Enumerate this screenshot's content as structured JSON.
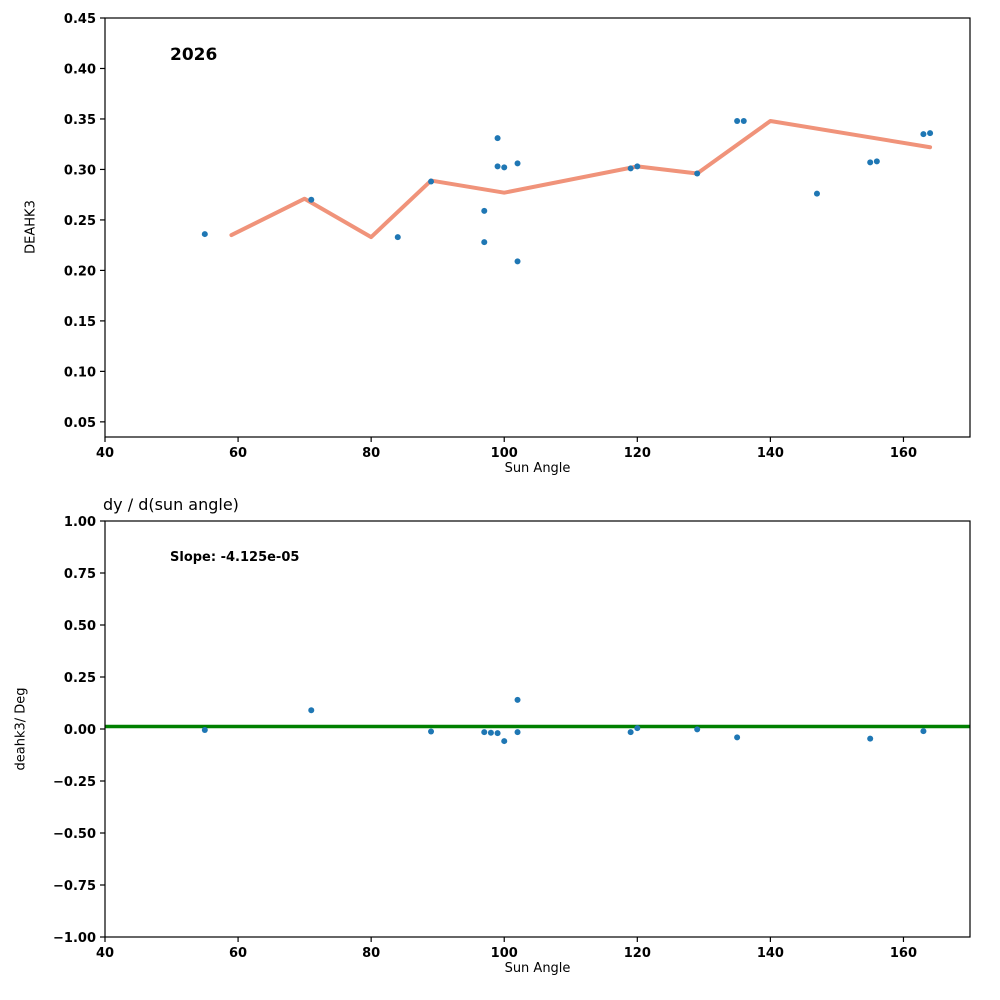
{
  "figure": {
    "background": "#ffffff",
    "scatter_color": "#1f77b4",
    "trend_color": "#f0937a",
    "fit_color": "#008000"
  },
  "chart_data": [
    {
      "type": "scatter",
      "title": "2026",
      "xlabel": "Sun Angle",
      "ylabel": "DEAHK3",
      "xlim": [
        40,
        170
      ],
      "ylim": [
        0.035,
        0.45
      ],
      "xticks": [
        40,
        60,
        80,
        100,
        120,
        140,
        160
      ],
      "yticks": [
        0.05,
        0.1,
        0.15,
        0.2,
        0.25,
        0.3,
        0.35,
        0.4,
        0.45
      ],
      "xtick_decimals": 0,
      "ytick_decimals": 2,
      "grid": false,
      "legend": null,
      "scatter": {
        "color": "#1f77b4",
        "points": [
          [
            55,
            0.236
          ],
          [
            71,
            0.27
          ],
          [
            84,
            0.233
          ],
          [
            89,
            0.288
          ],
          [
            97,
            0.259
          ],
          [
            97,
            0.228
          ],
          [
            99,
            0.331
          ],
          [
            99,
            0.303
          ],
          [
            100,
            0.302
          ],
          [
            102,
            0.306
          ],
          [
            102,
            0.209
          ],
          [
            119,
            0.301
          ],
          [
            120,
            0.303
          ],
          [
            129,
            0.296
          ],
          [
            135,
            0.348
          ],
          [
            136,
            0.348
          ],
          [
            147,
            0.276
          ],
          [
            155,
            0.307
          ],
          [
            156,
            0.308
          ],
          [
            163,
            0.335
          ],
          [
            164,
            0.336
          ]
        ]
      },
      "line": {
        "color": "#f0937a",
        "points": [
          [
            59,
            0.235
          ],
          [
            70,
            0.271
          ],
          [
            80,
            0.233
          ],
          [
            89,
            0.289
          ],
          [
            100,
            0.277
          ],
          [
            120,
            0.303
          ],
          [
            129,
            0.296
          ],
          [
            140,
            0.348
          ],
          [
            164,
            0.322
          ]
        ]
      }
    },
    {
      "type": "scatter",
      "title": "dy / d(sun angle)",
      "annotation": "Slope: -4.125e-05",
      "xlabel": "Sun Angle",
      "ylabel": "deahk3/ Deg",
      "xlim": [
        40,
        170
      ],
      "ylim": [
        -1.0,
        1.0
      ],
      "xticks": [
        40,
        60,
        80,
        100,
        120,
        140,
        160
      ],
      "yticks": [
        -1.0,
        -0.75,
        -0.5,
        -0.25,
        0.0,
        0.25,
        0.5,
        0.75,
        1.0
      ],
      "xtick_decimals": 0,
      "ytick_decimals": 2,
      "grid": false,
      "legend": null,
      "scatter": {
        "color": "#1f77b4",
        "points": [
          [
            55,
            -0.005
          ],
          [
            71,
            0.09
          ],
          [
            89,
            -0.012
          ],
          [
            97,
            -0.015
          ],
          [
            98,
            -0.018
          ],
          [
            99,
            -0.02
          ],
          [
            100,
            -0.058
          ],
          [
            102,
            0.14
          ],
          [
            102,
            -0.015
          ],
          [
            119,
            -0.015
          ],
          [
            120,
            0.004
          ],
          [
            129,
            -0.002
          ],
          [
            135,
            -0.04
          ],
          [
            155,
            -0.046
          ],
          [
            163,
            -0.01
          ]
        ]
      },
      "hline": {
        "color": "#008000",
        "y": 0.012
      }
    }
  ]
}
